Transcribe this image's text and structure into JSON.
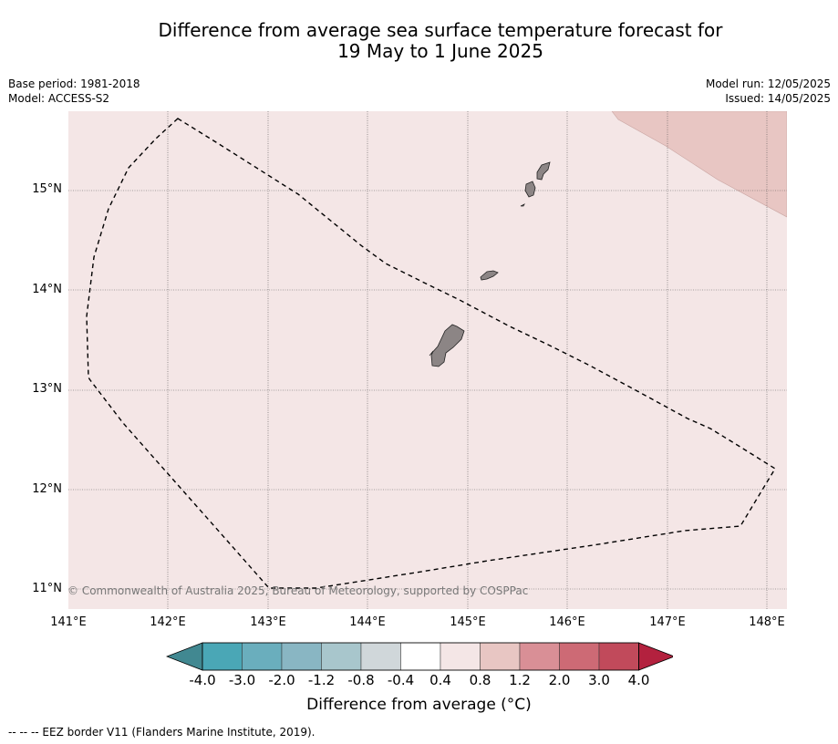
{
  "title_line1": "Difference from average sea surface temperature forecast for",
  "title_line2": "19 May to 1 June 2025",
  "meta_left": {
    "base_period": "Base period: 1981-2018",
    "model": "Model: ACCESS-S2"
  },
  "meta_right": {
    "model_run": "Model run: 12/05/2025",
    "issued": "Issued: 14/05/2025"
  },
  "map": {
    "lon_range": [
      141.0,
      148.2
    ],
    "lat_range": [
      10.8,
      15.8
    ],
    "lat_ticks": [
      "15°N",
      "14°N",
      "13°N",
      "12°N",
      "11°N"
    ],
    "lon_ticks": [
      "141°E",
      "142°E",
      "143°E",
      "144°E",
      "145°E",
      "146°E",
      "147°E",
      "148°E"
    ],
    "background_anomaly_class": "0.4 to 0.8",
    "northeast_anomaly_class": "0.8 to 1.2",
    "land_color": "#8c8585",
    "grid": true
  },
  "copyright": "© Commonwealth of Australia 2025, Bureau of Meteorology, supported by COSPPac",
  "colorbar": {
    "ticks": [
      "-4.0",
      "-3.0",
      "-2.0",
      "-1.2",
      "-0.8",
      "-0.4",
      "0.4",
      "0.8",
      "1.2",
      "2.0",
      "3.0",
      "4.0"
    ],
    "colors": [
      "#418891",
      "#4aa7b6",
      "#6aaebd",
      "#89b6c3",
      "#a8c6cc",
      "#d0d7da",
      "#ffffff",
      "#f4e6e6",
      "#e8c6c3",
      "#d98f96",
      "#cd6a75",
      "#c14a5b",
      "#b3213e"
    ],
    "label": "Difference from average (°C)"
  },
  "footnote": "--  --  -- EEZ border V11 (Flanders Marine Institute, 2019)."
}
